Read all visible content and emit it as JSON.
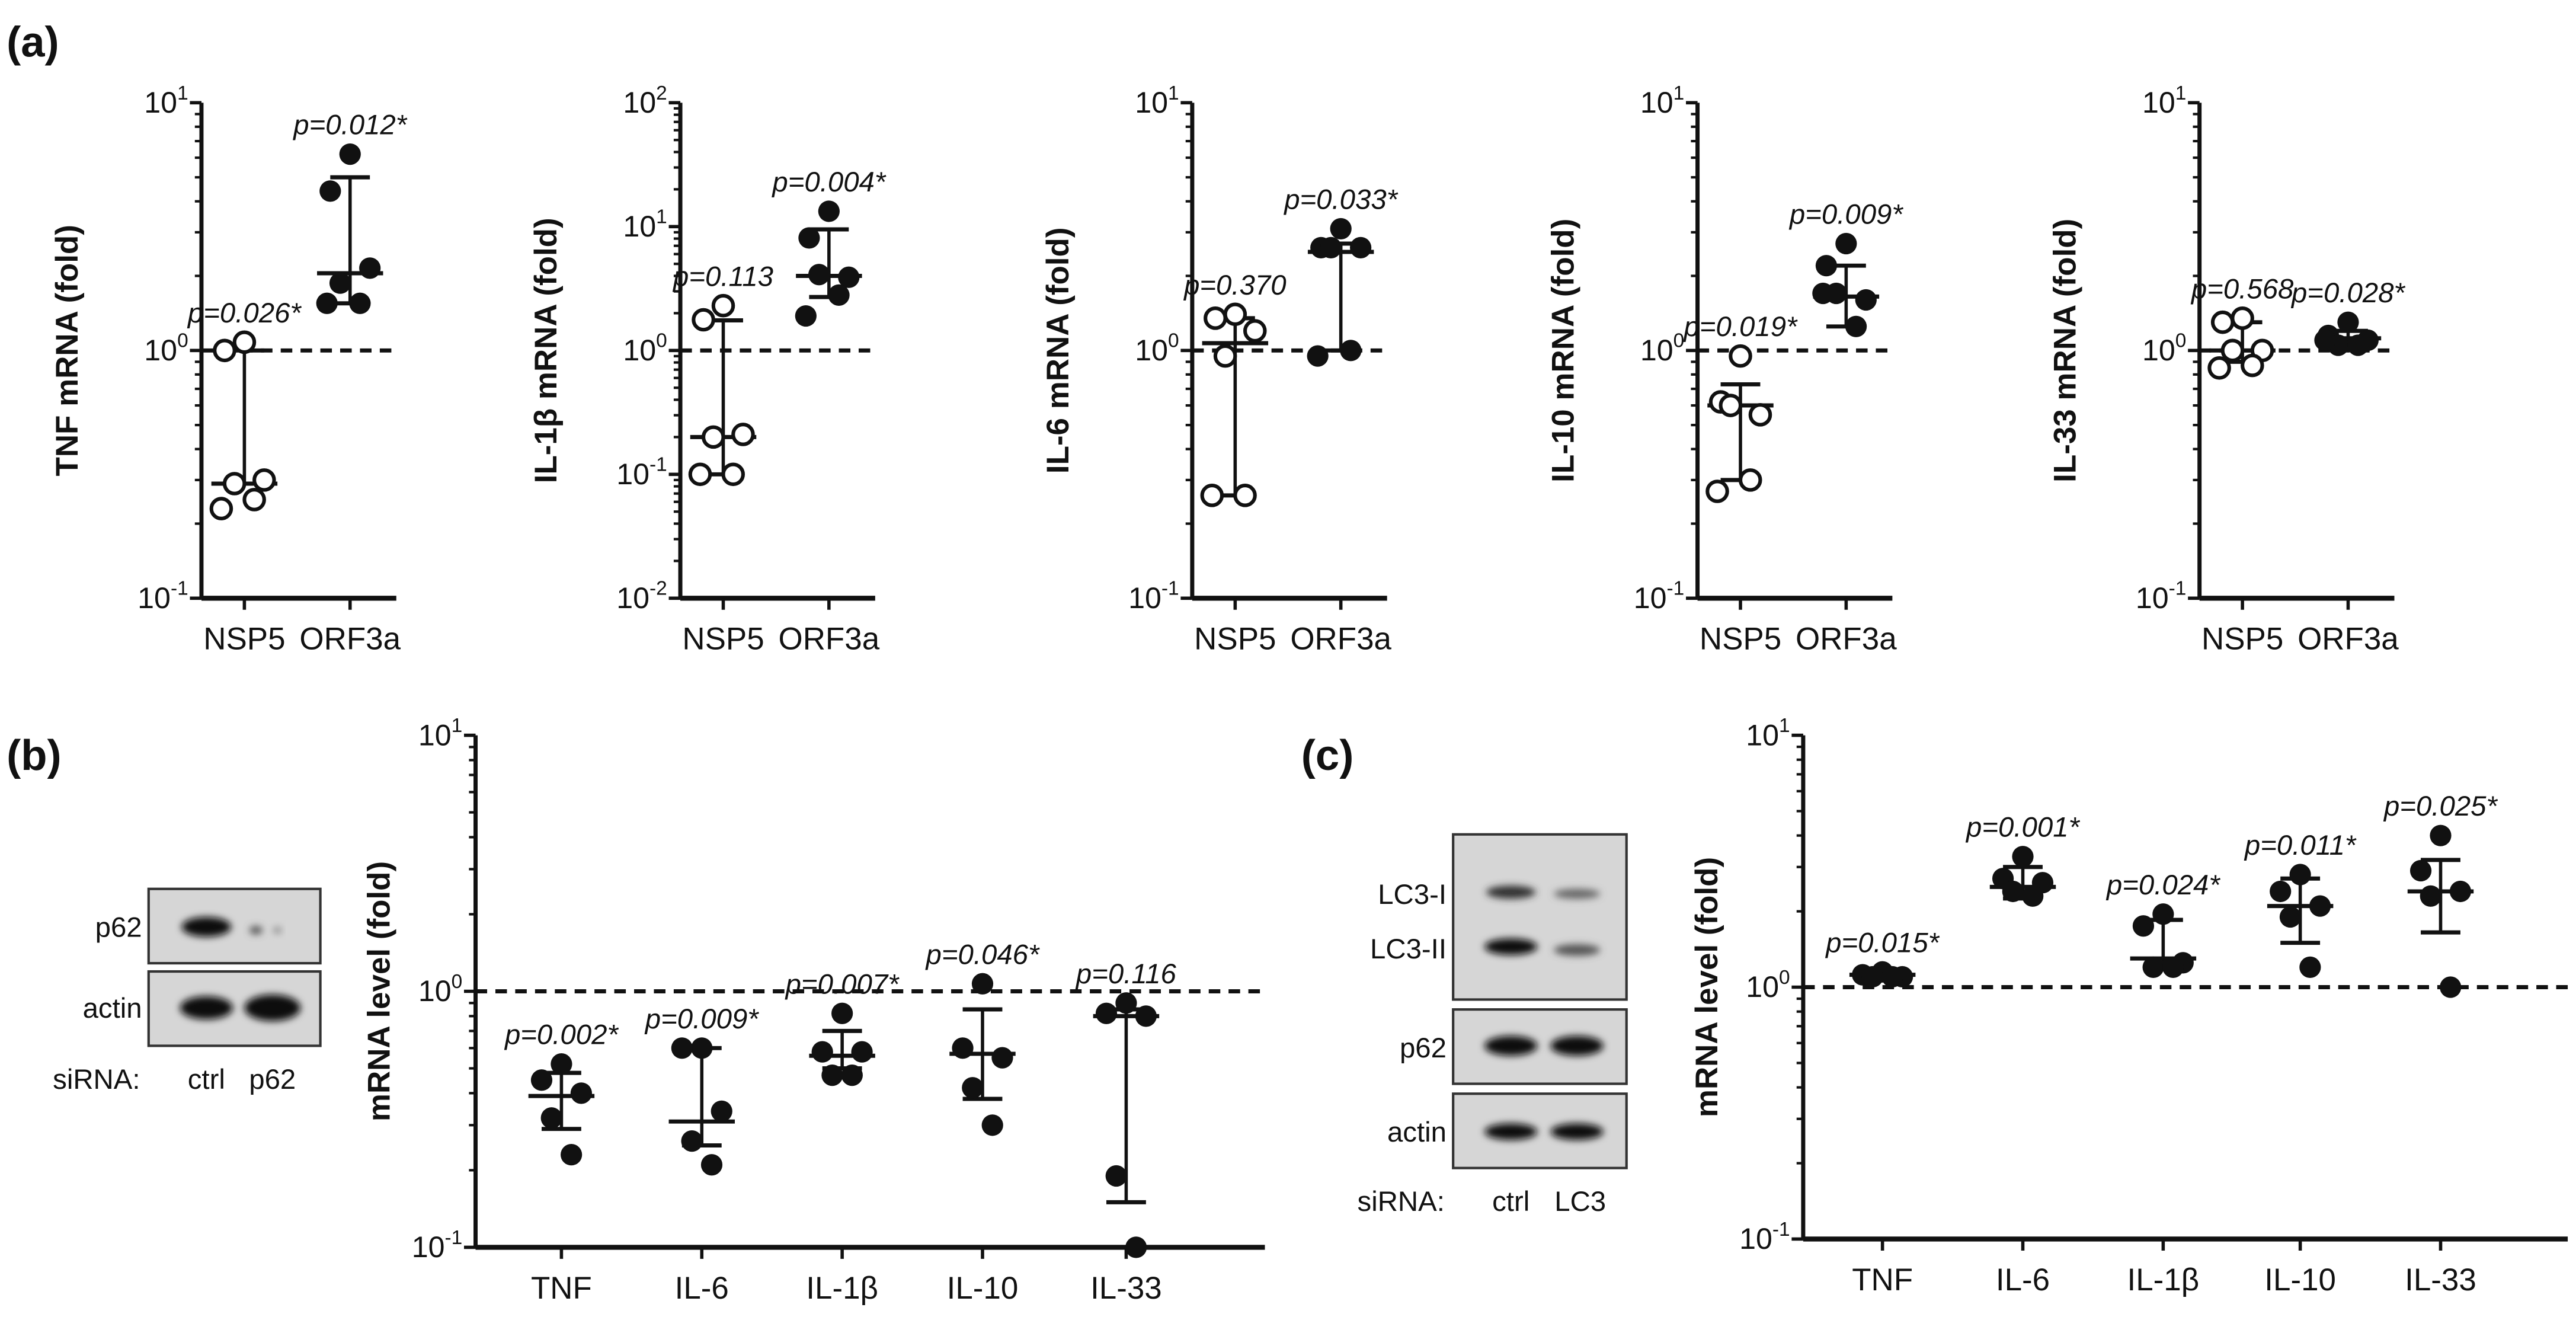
{
  "panels": {
    "a": "(a)",
    "b": "(b)",
    "c": "(c)"
  },
  "blots": {
    "b": {
      "rows": [
        "p62",
        "actin"
      ],
      "sirna_label": "siRNA:",
      "lanes": [
        "ctrl",
        "p62"
      ]
    },
    "c": {
      "rows": [
        "LC3-I",
        "LC3-II",
        "p62",
        "actin"
      ],
      "sirna_label": "siRNA:",
      "lanes": [
        "ctrl",
        "LC3"
      ]
    }
  },
  "chart_data": [
    {
      "id": "a1",
      "type": "scatter",
      "scale": "log",
      "ylabel": "TNF mRNA (fold)",
      "ylim_exp": [
        -1,
        1
      ],
      "ticks_exp": [
        -1,
        0,
        1
      ],
      "reference_line": 1,
      "categories": [
        "NSP5",
        "ORF3a"
      ],
      "open": [
        true,
        false
      ],
      "points": [
        [
          1.08,
          1.0,
          0.3,
          0.29,
          0.25,
          0.23
        ],
        [
          6.2,
          4.4,
          2.15,
          1.87,
          1.55,
          1.55
        ]
      ],
      "median": [
        0.29,
        2.05
      ],
      "range": [
        [
          0.29,
          1.0
        ],
        [
          1.55,
          5.0
        ]
      ],
      "pvalues": [
        "p=0.026*",
        "p=0.012*"
      ]
    },
    {
      "id": "a2",
      "type": "scatter",
      "scale": "log",
      "ylabel": "IL-1β mRNA (fold)",
      "ylim_exp": [
        -2,
        2
      ],
      "ticks_exp": [
        -2,
        -1,
        0,
        1,
        2
      ],
      "reference_line": 1,
      "categories": [
        "NSP5",
        "ORF3a"
      ],
      "open": [
        true,
        false
      ],
      "points": [
        [
          2.3,
          1.77,
          0.21,
          0.2,
          0.1,
          0.1
        ],
        [
          13.3,
          8.1,
          3.9,
          4.1,
          2.8,
          1.9
        ]
      ],
      "median": [
        0.2,
        4.0
      ],
      "range": [
        [
          0.1,
          1.75
        ],
        [
          2.7,
          9.5
        ]
      ],
      "pvalues": [
        "p=0.113",
        "p=0.004*"
      ]
    },
    {
      "id": "a3",
      "type": "scatter",
      "scale": "log",
      "ylabel": "IL-6 mRNA (fold)",
      "ylim_exp": [
        -1,
        1
      ],
      "ticks_exp": [
        -1,
        0,
        1
      ],
      "reference_line": 1,
      "categories": [
        "NSP5",
        "ORF3a"
      ],
      "open": [
        true,
        false
      ],
      "points": [
        [
          1.4,
          1.35,
          1.2,
          0.95,
          0.26,
          0.26
        ],
        [
          3.1,
          2.6,
          2.6,
          2.6,
          1.0,
          0.95
        ]
      ],
      "median": [
        1.07,
        2.5
      ],
      "range": [
        [
          0.26,
          1.35
        ],
        [
          1.0,
          2.7
        ]
      ],
      "pvalues": [
        "p=0.370",
        "p=0.033*"
      ]
    },
    {
      "id": "a4",
      "type": "scatter",
      "scale": "log",
      "ylabel": "IL-10 mRNA (fold)",
      "ylim_exp": [
        -1,
        1
      ],
      "ticks_exp": [
        -1,
        0,
        1
      ],
      "reference_line": 1,
      "categories": [
        "NSP5",
        "ORF3a"
      ],
      "open": [
        true,
        false
      ],
      "points": [
        [
          0.95,
          0.62,
          0.55,
          0.6,
          0.3,
          0.27
        ],
        [
          2.7,
          2.2,
          1.6,
          1.7,
          1.25,
          1.7
        ]
      ],
      "median": [
        0.6,
        1.65
      ],
      "range": [
        [
          0.3,
          0.73
        ],
        [
          1.25,
          2.2
        ]
      ],
      "pvalues": [
        "p=0.019*",
        "p=0.009*"
      ]
    },
    {
      "id": "a5",
      "type": "scatter",
      "scale": "log",
      "ylabel": "IL-33 mRNA (fold)",
      "ylim_exp": [
        -1,
        1
      ],
      "ticks_exp": [
        -1,
        0,
        1
      ],
      "reference_line": 1,
      "categories": [
        "NSP5",
        "ORF3a"
      ],
      "open": [
        true,
        false
      ],
      "points": [
        [
          1.35,
          1.3,
          1.0,
          1.0,
          0.87,
          0.85
        ],
        [
          1.3,
          1.15,
          1.1,
          1.05,
          1.05,
          1.1
        ]
      ],
      "median": [
        1.0,
        1.12
      ],
      "range": [
        [
          0.9,
          1.3
        ],
        [
          1.05,
          1.2
        ]
      ],
      "pvalues": [
        "p=0.568",
        "p=0.028*"
      ]
    },
    {
      "id": "b",
      "type": "scatter",
      "scale": "log",
      "ylabel": "mRNA level (fold)",
      "ylim_exp": [
        -1,
        1
      ],
      "ticks_exp": [
        -1,
        0,
        1
      ],
      "reference_line": 1,
      "categories": [
        "TNF",
        "IL-6",
        "IL-1β",
        "IL-10",
        "IL-33"
      ],
      "open": [
        false,
        false,
        false,
        false,
        false
      ],
      "points": [
        [
          0.52,
          0.45,
          0.4,
          0.32,
          0.23
        ],
        [
          0.6,
          0.6,
          0.34,
          0.26,
          0.21
        ],
        [
          0.82,
          0.58,
          0.58,
          0.47,
          0.47
        ],
        [
          1.07,
          0.6,
          0.55,
          0.42,
          0.3
        ],
        [
          0.9,
          0.82,
          0.8,
          0.19,
          0.1
        ]
      ],
      "median": [
        0.39,
        0.31,
        0.56,
        0.57,
        0.8
      ],
      "range": [
        [
          0.29,
          0.48
        ],
        [
          0.25,
          0.6
        ],
        [
          0.5,
          0.7
        ],
        [
          0.38,
          0.85
        ],
        [
          0.15,
          0.85
        ]
      ],
      "pvalues": [
        "p=0.002*",
        "p=0.009*",
        "p=0.007*",
        "p=0.046*",
        "p=0.116"
      ]
    },
    {
      "id": "c",
      "type": "scatter",
      "scale": "log",
      "ylabel": "mRNA level (fold)",
      "ylim_exp": [
        -1,
        1
      ],
      "ticks_exp": [
        -1,
        0,
        1
      ],
      "reference_line": 1,
      "categories": [
        "TNF",
        "IL-6",
        "IL-1β",
        "IL-10",
        "IL-33"
      ],
      "open": [
        false,
        false,
        false,
        false,
        false
      ],
      "points": [
        [
          1.15,
          1.12,
          1.1,
          1.1,
          1.1
        ],
        [
          3.3,
          2.7,
          2.6,
          2.4,
          2.3
        ],
        [
          1.95,
          1.75,
          1.25,
          1.2,
          1.2
        ],
        [
          2.8,
          2.4,
          2.1,
          1.9,
          1.2
        ],
        [
          4.0,
          2.9,
          2.4,
          2.3,
          1.0
        ]
      ],
      "median": [
        1.12,
        2.5,
        1.3,
        2.1,
        2.4
      ],
      "range": [
        [
          1.1,
          1.15
        ],
        [
          2.25,
          3.0
        ],
        [
          1.2,
          1.85
        ],
        [
          1.5,
          2.7
        ],
        [
          1.65,
          3.2
        ]
      ],
      "pvalues": [
        "p=0.015*",
        "p=0.001*",
        "p=0.024*",
        "p=0.011*",
        "p=0.025*"
      ]
    }
  ]
}
